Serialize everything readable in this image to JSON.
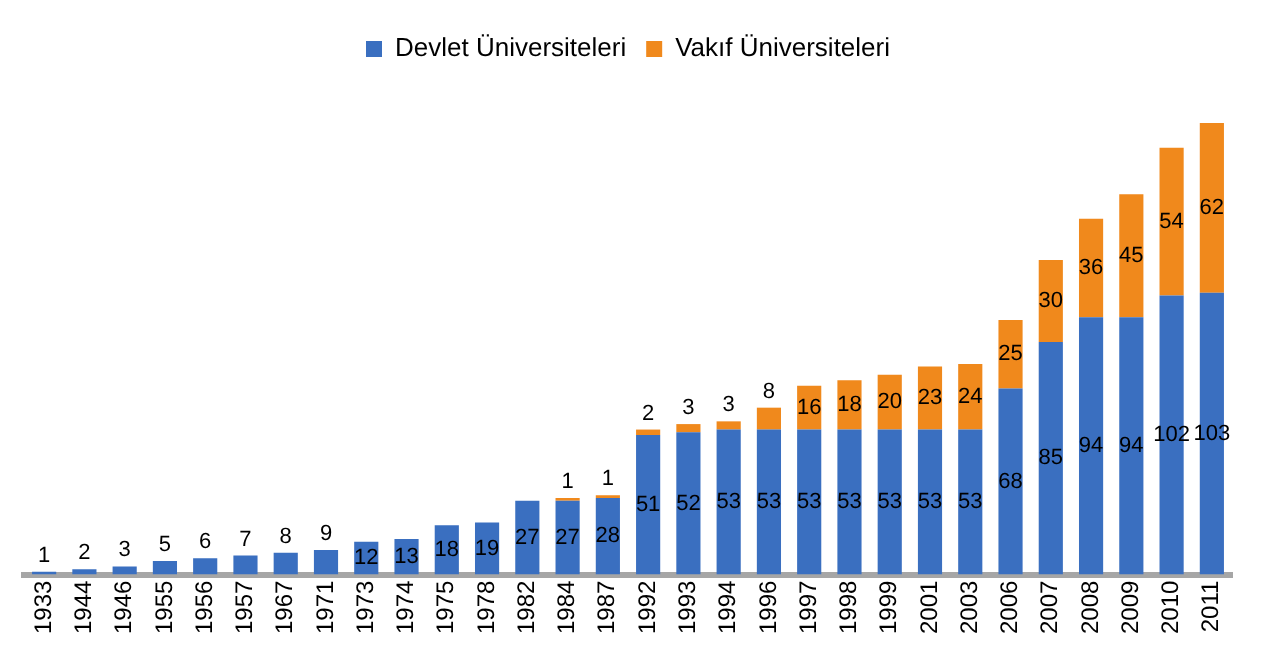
{
  "chart_data": {
    "type": "bar",
    "stacked": true,
    "data_labels": true,
    "legend": "top",
    "grid": false,
    "tick_labels": "x",
    "categories": [
      "1933",
      "1944",
      "1946",
      "1955",
      "1956",
      "1957",
      "1967",
      "1971",
      "1973",
      "1974",
      "1975",
      "1978",
      "1982",
      "1984",
      "1987",
      "1992",
      "1993",
      "1994",
      "1996",
      "1997",
      "1998",
      "1999",
      "2001",
      "2003",
      "2006",
      "2007",
      "2008",
      "2009",
      "2010",
      "2011"
    ],
    "series": [
      {
        "name": "Devlet Üniversiteleri",
        "color": "#3a6fc0",
        "values": [
          1,
          2,
          3,
          5,
          6,
          7,
          8,
          9,
          12,
          13,
          18,
          19,
          27,
          27,
          28,
          51,
          52,
          53,
          53,
          53,
          53,
          53,
          53,
          53,
          68,
          85,
          94,
          94,
          102,
          103
        ]
      },
      {
        "name": "Vakıf Üniversiteleri",
        "color": "#f0891c",
        "values": [
          null,
          null,
          null,
          null,
          null,
          null,
          null,
          null,
          null,
          null,
          null,
          null,
          null,
          1,
          1,
          2,
          3,
          3,
          8,
          16,
          18,
          20,
          23,
          24,
          25,
          30,
          36,
          45,
          54,
          62
        ]
      }
    ]
  }
}
